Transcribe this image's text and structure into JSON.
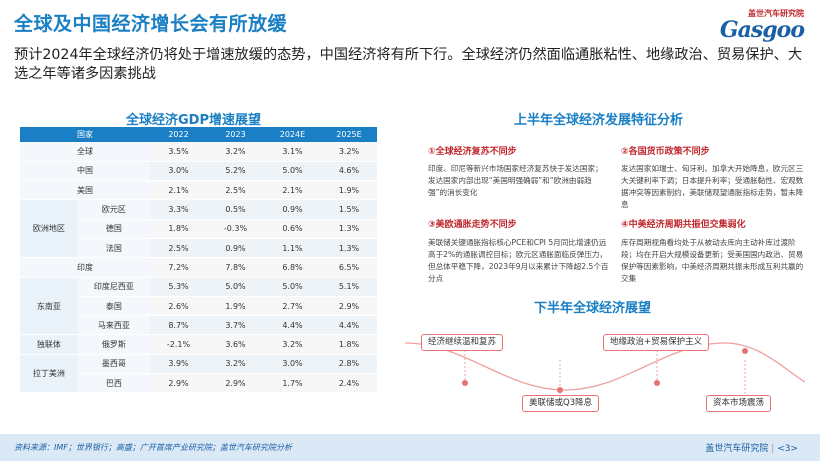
{
  "header": {
    "title": "全球及中国经济增长会有所放缓",
    "logo_cn": "盖世汽车研究院",
    "logo_en": "Gasgoo"
  },
  "subtitle": "预计2024年全球经济仍将处于增速放缓的态势，中国经济将有所下行。全球经济仍然面临通胀粘性、地缘政治、贸易保护、大选之年等诸多因素挑战",
  "left": {
    "heading": "全球经济GDP增速展望",
    "columns": [
      "国家",
      "2022",
      "2023",
      "2024E",
      "2025E"
    ],
    "rows": [
      {
        "region": "",
        "country": "全球",
        "v": [
          "3.5%",
          "3.2%",
          "3.1%",
          "3.2%"
        ]
      },
      {
        "region": "",
        "country": "中国",
        "v": [
          "3.0%",
          "5.2%",
          "5.0%",
          "4.6%"
        ]
      },
      {
        "region": "",
        "country": "美国",
        "v": [
          "2.1%",
          "2.5%",
          "2.1%",
          "1.9%"
        ]
      },
      {
        "region": "欧洲地区",
        "country": "欧元区",
        "v": [
          "3.3%",
          "0.5%",
          "0.9%",
          "1.5%"
        ]
      },
      {
        "region": "",
        "country": "德国",
        "v": [
          "1.8%",
          "-0.3%",
          "0.6%",
          "1.3%"
        ]
      },
      {
        "region": "",
        "country": "法国",
        "v": [
          "2.5%",
          "0.9%",
          "1.1%",
          "1.3%"
        ]
      },
      {
        "region": "",
        "country": "印度",
        "v": [
          "7.2%",
          "7.8%",
          "6.8%",
          "6.5%"
        ]
      },
      {
        "region": "东南亚",
        "country": "印度尼西亚",
        "v": [
          "5.3%",
          "5.0%",
          "5.0%",
          "5.1%"
        ]
      },
      {
        "region": "",
        "country": "泰国",
        "v": [
          "2.6%",
          "1.9%",
          "2.7%",
          "2.9%"
        ]
      },
      {
        "region": "",
        "country": "马来西亚",
        "v": [
          "8.7%",
          "3.7%",
          "4.4%",
          "4.4%"
        ]
      },
      {
        "region": "独联体",
        "country": "俄罗斯",
        "v": [
          "-2.1%",
          "3.6%",
          "3.2%",
          "1.8%"
        ]
      },
      {
        "region": "拉丁美洲",
        "country": "墨西哥",
        "v": [
          "3.9%",
          "3.2%",
          "3.0%",
          "2.8%"
        ]
      },
      {
        "region": "",
        "country": "巴西",
        "v": [
          "2.9%",
          "2.9%",
          "1.7%",
          "2.4%"
        ]
      }
    ]
  },
  "right": {
    "heading": "上半年全球经济发展特征分析",
    "items": [
      {
        "title": "①全球经济复苏不同步",
        "text": "印度、印尼等新兴市场国家经济复苏快于发达国家；发达国家内部出现“美国明强确弱”和“欧洲由弱趋强”的消长变化"
      },
      {
        "title": "②各国货币政策不同步",
        "text": "发达国家如瑞士、匈牙利、加拿大开始降息，欧元区三大关键利率下调；日本提升利率；受通胀黏性、宏观数据冲突等因素制约，美联储观望通胀指标走势，暂未降息"
      },
      {
        "title": "③美欧通胀走势不同步",
        "text": "美联储关键通胀指标核心PCE和CPI 5月同比增速仍远高于2%的通胀调控目标；欧元区通胀面临反弹压力，但总体平稳下降，2023年9月以来累计下降超2.5个百分点"
      },
      {
        "title": "④中美经济周期共振但交集弱化",
        "text": "库存周期视角看均处于从被动去库向主动补库过渡阶段；均在开启大规模设备更新；受美国国内政治、贸易保护等因素影响，中美经济周期共振未形成互利共赢的交集"
      }
    ],
    "outlook_heading": "下半年全球经济展望",
    "outlook_tags": [
      "经济继续温和复苏",
      "地缘政治+贸易保护主义",
      "美联储或Q3降息",
      "资本市场震荡"
    ]
  },
  "footer": {
    "source": "资料来源：IMF；世界银行；高盛；广开首席产业研究院；盖世汽车研究院分析",
    "org": "盖世汽车研究院",
    "page": "<3>"
  },
  "colors": {
    "primary": "#1a7fc4",
    "accent": "#c0282e"
  }
}
